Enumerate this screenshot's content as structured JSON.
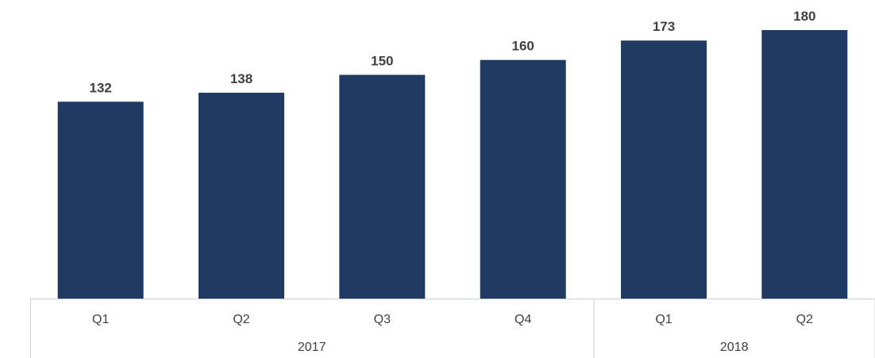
{
  "chart_data": {
    "type": "bar",
    "title": "",
    "xlabel": "",
    "ylabel": "",
    "categories": [
      "Q1",
      "Q2",
      "Q3",
      "Q4",
      "Q1",
      "Q2"
    ],
    "groups": [
      {
        "label": "2017",
        "count": 4
      },
      {
        "label": "2018",
        "count": 2
      }
    ],
    "values": [
      132,
      138,
      150,
      160,
      173,
      180
    ],
    "data_labels": [
      "132",
      "138",
      "150",
      "160",
      "173",
      "180"
    ],
    "ylim": [
      0,
      180
    ],
    "grid": false,
    "legend": "none",
    "colors": {
      "bar": "#1f3a63",
      "axis": "#d0d0d0",
      "text": "#404040"
    }
  }
}
